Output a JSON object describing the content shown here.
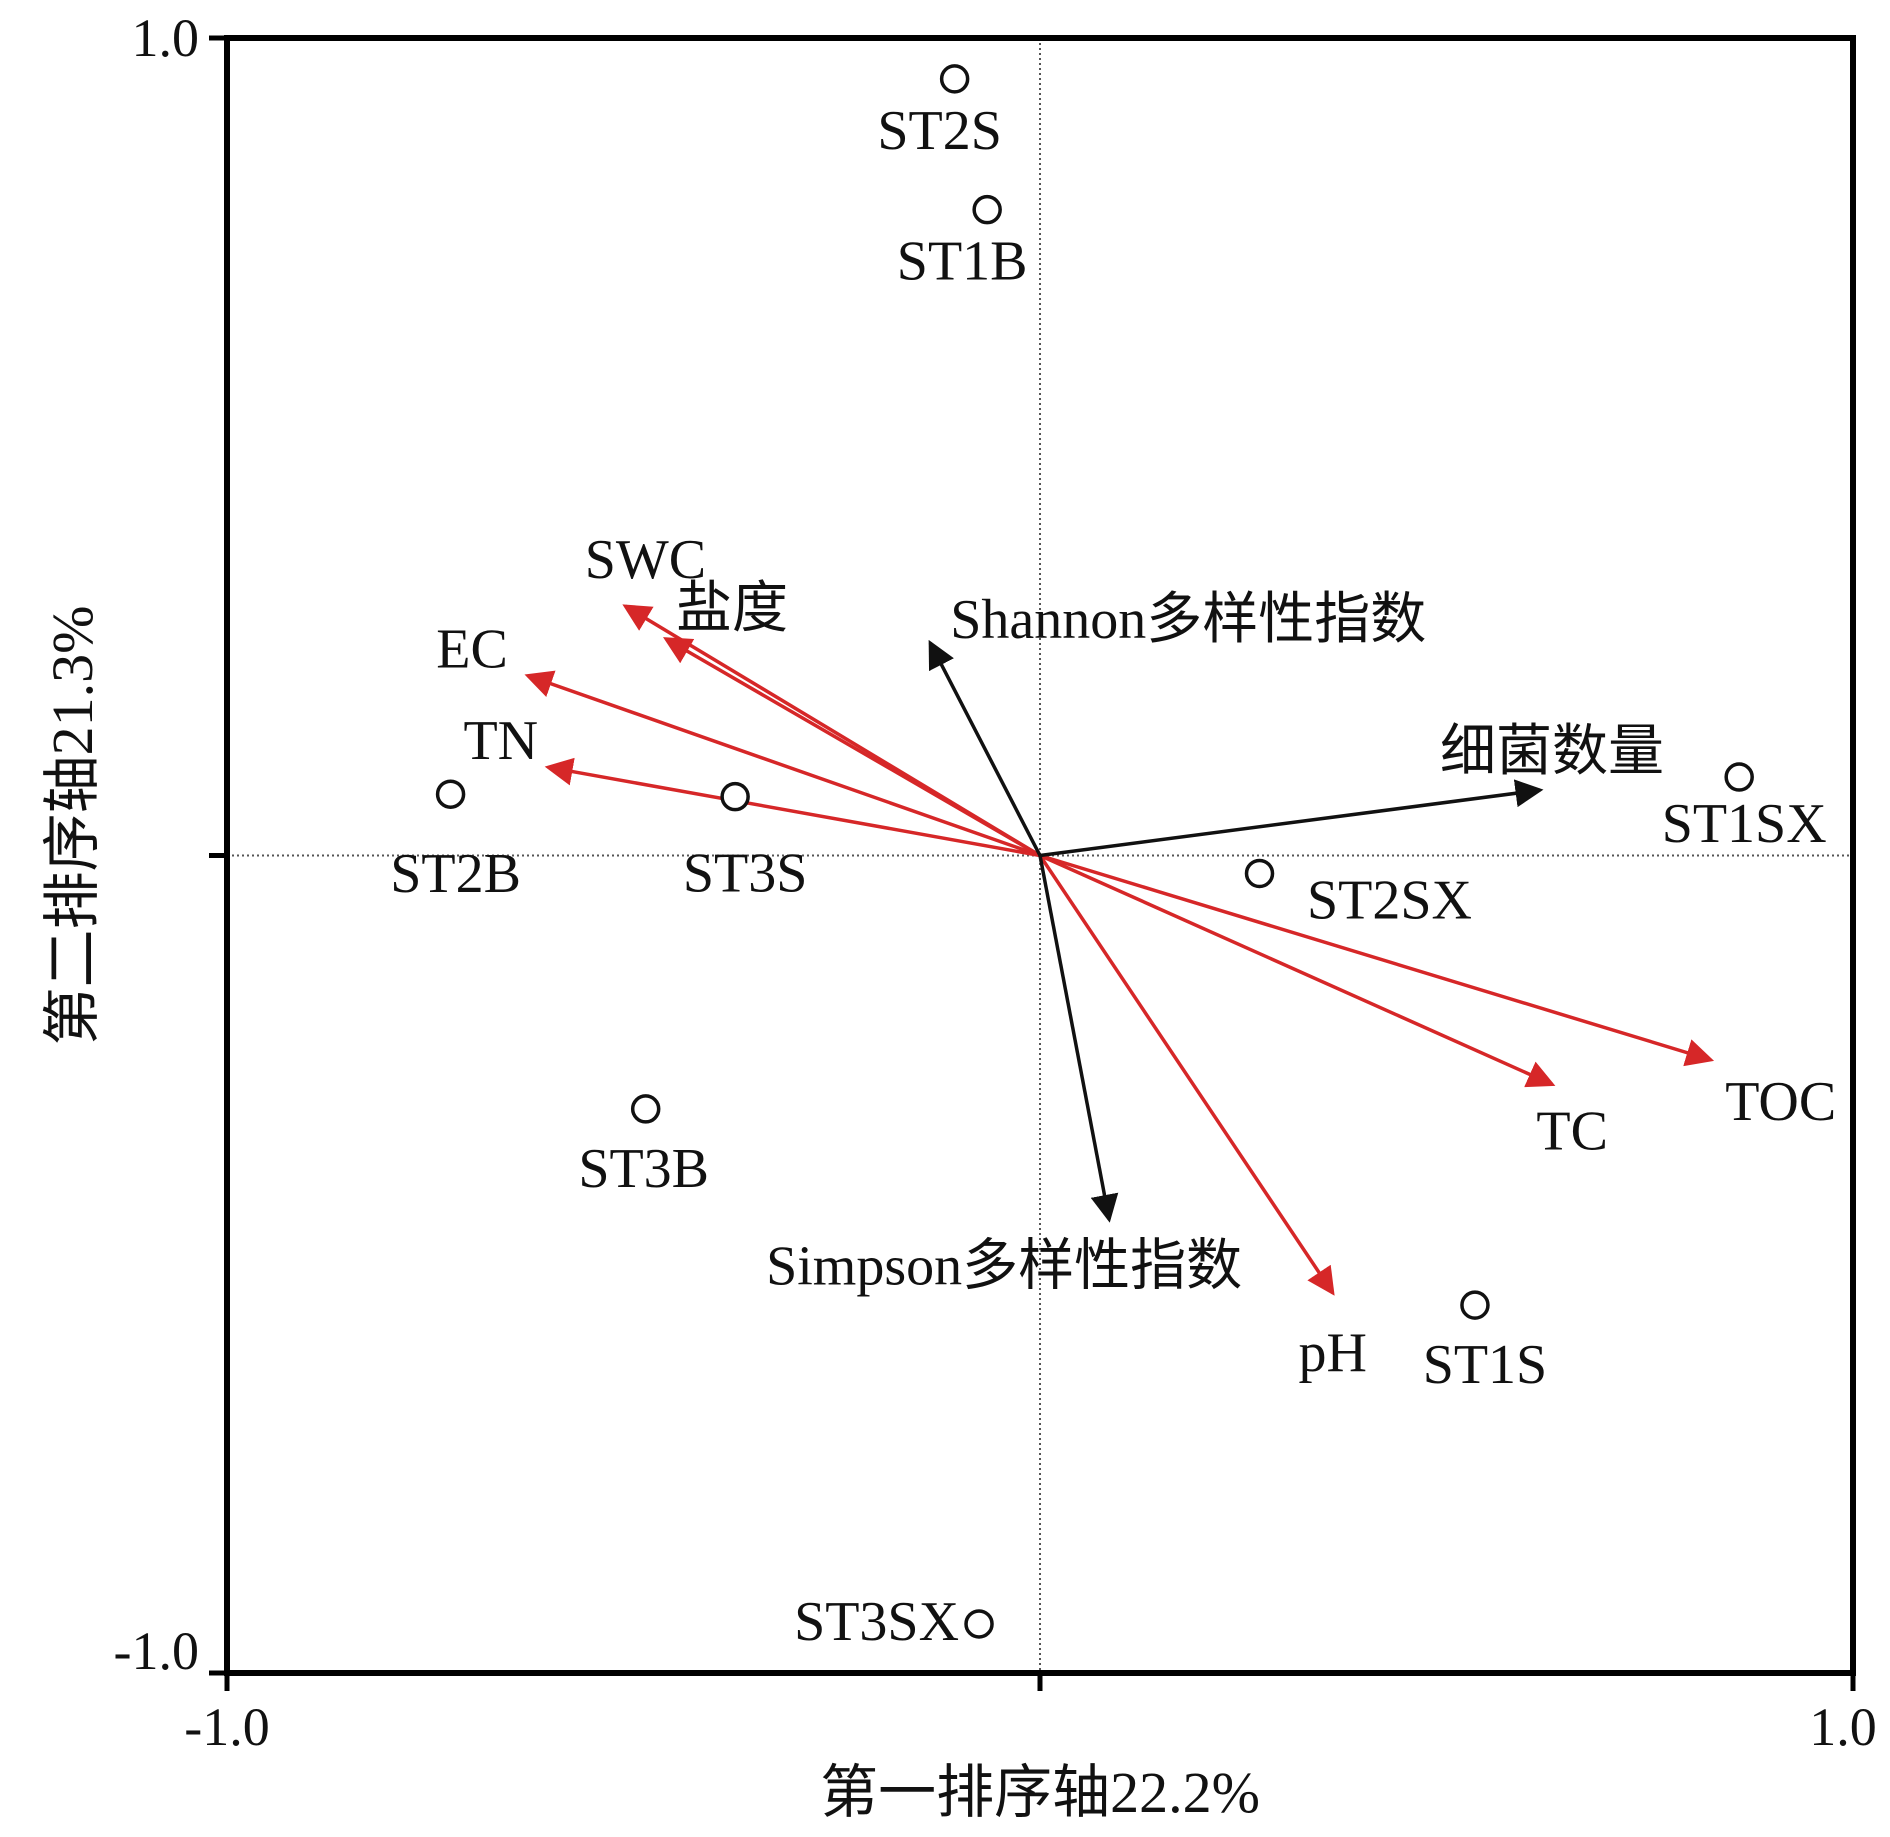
{
  "chart_data": {
    "type": "scatter",
    "subtype": "ordination-biplot",
    "xlabel": "第一排序轴22.2%",
    "ylabel": "第二排序轴21.3%",
    "xlim": [
      -1.0,
      1.0
    ],
    "ylim": [
      -1.0,
      1.0
    ],
    "x_ticks": [
      "-1.0",
      "1.0"
    ],
    "y_ticks": [
      "1.0",
      "-1.0"
    ],
    "zero_lines": true,
    "colors": {
      "environment": "#d62728",
      "response": "#111111",
      "axes": "#000000"
    },
    "samples": [
      {
        "name": "ST2S",
        "x": -0.105,
        "y": 0.95
      },
      {
        "name": "ST1B",
        "x": -0.065,
        "y": 0.79
      },
      {
        "name": "ST2B",
        "x": -0.725,
        "y": 0.075
      },
      {
        "name": "ST3S",
        "x": -0.375,
        "y": 0.072
      },
      {
        "name": "ST1SX",
        "x": 0.86,
        "y": 0.096
      },
      {
        "name": "ST2SX",
        "x": 0.27,
        "y": -0.022
      },
      {
        "name": "ST3B",
        "x": -0.485,
        "y": -0.31
      },
      {
        "name": "ST1S",
        "x": 0.535,
        "y": -0.55
      },
      {
        "name": "ST3SX",
        "x": -0.075,
        "y": -0.94
      }
    ],
    "environment_vectors": [
      {
        "name": "SWC",
        "x": -0.51,
        "y": 0.305
      },
      {
        "name": "盐度",
        "x": -0.46,
        "y": 0.265
      },
      {
        "name": "EC",
        "x": -0.63,
        "y": 0.22
      },
      {
        "name": "TN",
        "x": -0.605,
        "y": 0.108
      },
      {
        "name": "TC",
        "x": 0.63,
        "y": -0.28
      },
      {
        "name": "TOC",
        "x": 0.825,
        "y": -0.25
      },
      {
        "name": "pH",
        "x": 0.36,
        "y": -0.535
      }
    ],
    "response_vectors": [
      {
        "name": "Shannon多样性指数",
        "x": -0.135,
        "y": 0.26
      },
      {
        "name": "细菌数量",
        "x": 0.615,
        "y": 0.08
      },
      {
        "name": "Simpson多样性指数",
        "x": 0.085,
        "y": -0.445
      }
    ]
  }
}
